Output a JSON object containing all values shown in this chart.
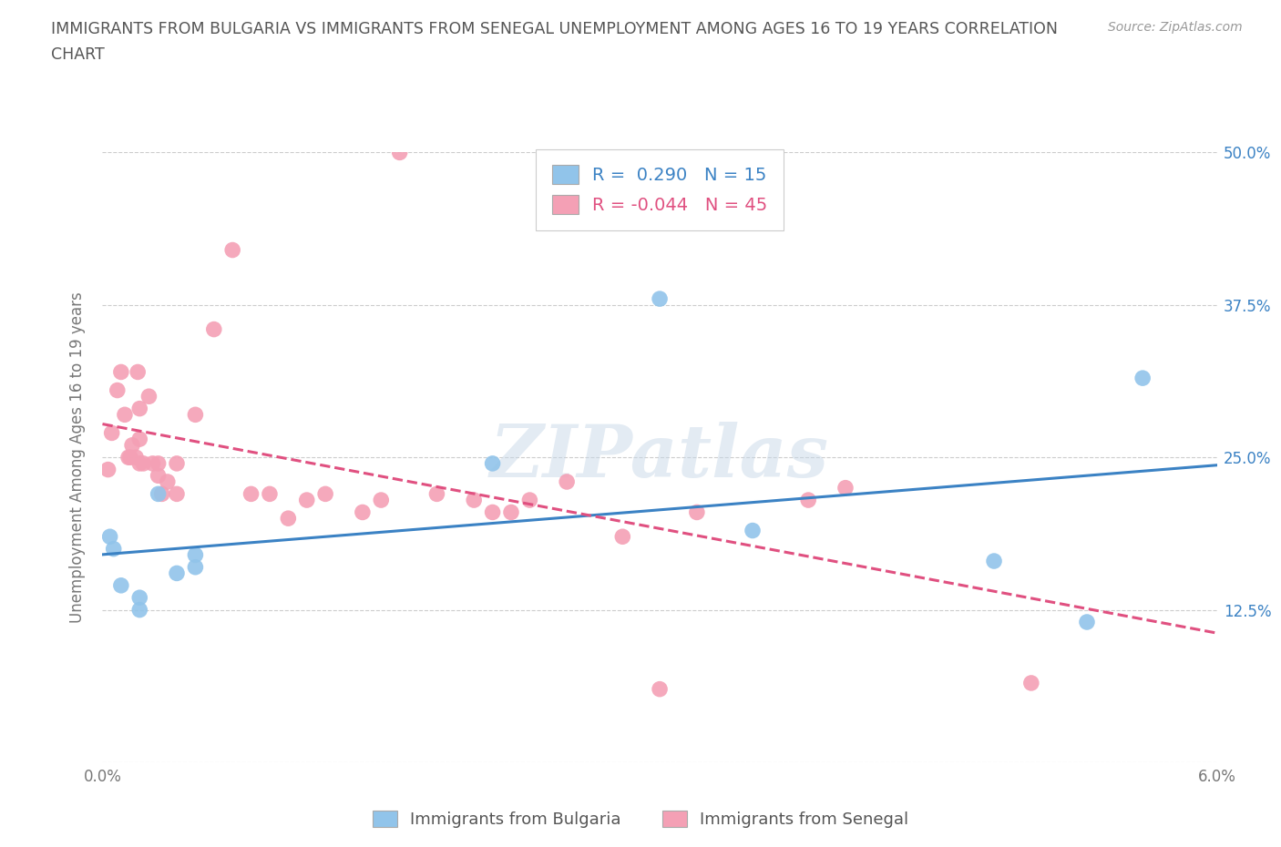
{
  "title_line1": "IMMIGRANTS FROM BULGARIA VS IMMIGRANTS FROM SENEGAL UNEMPLOYMENT AMONG AGES 16 TO 19 YEARS CORRELATION",
  "title_line2": "CHART",
  "source": "Source: ZipAtlas.com",
  "ylabel": "Unemployment Among Ages 16 to 19 years",
  "xlabel_label1": "Immigrants from Bulgaria",
  "xlabel_label2": "Immigrants from Senegal",
  "xlim": [
    0.0,
    0.06
  ],
  "ylim": [
    0.0,
    0.5
  ],
  "xticks": [
    0.0,
    0.01,
    0.02,
    0.03,
    0.04,
    0.05,
    0.06
  ],
  "yticks": [
    0.0,
    0.125,
    0.25,
    0.375,
    0.5
  ],
  "xticklabels": [
    "0.0%",
    "",
    "",
    "",
    "",
    "",
    "6.0%"
  ],
  "yticklabels_left": [
    "",
    "",
    "",
    "",
    ""
  ],
  "yticklabels_right": [
    "",
    "12.5%",
    "25.0%",
    "37.5%",
    "50.0%"
  ],
  "bulgaria_color": "#91C4EA",
  "senegal_color": "#F4A0B5",
  "bulgaria_line_color": "#3B82C4",
  "senegal_line_color": "#E05080",
  "r_bulgaria": 0.29,
  "n_bulgaria": 15,
  "r_senegal": -0.044,
  "n_senegal": 45,
  "watermark": "ZIPatlas",
  "bulgaria_x": [
    0.0004,
    0.0006,
    0.001,
    0.002,
    0.002,
    0.003,
    0.004,
    0.005,
    0.005,
    0.021,
    0.03,
    0.035,
    0.048,
    0.053,
    0.056
  ],
  "bulgaria_y": [
    0.185,
    0.175,
    0.145,
    0.135,
    0.125,
    0.22,
    0.155,
    0.16,
    0.17,
    0.245,
    0.38,
    0.19,
    0.165,
    0.115,
    0.315
  ],
  "senegal_x": [
    0.0003,
    0.0005,
    0.0008,
    0.001,
    0.0012,
    0.0014,
    0.0015,
    0.0016,
    0.0018,
    0.0019,
    0.002,
    0.002,
    0.002,
    0.0022,
    0.0025,
    0.0027,
    0.003,
    0.003,
    0.0032,
    0.0035,
    0.004,
    0.004,
    0.005,
    0.006,
    0.007,
    0.008,
    0.009,
    0.01,
    0.011,
    0.012,
    0.014,
    0.015,
    0.016,
    0.018,
    0.02,
    0.021,
    0.022,
    0.023,
    0.025,
    0.028,
    0.03,
    0.032,
    0.038,
    0.04,
    0.05
  ],
  "senegal_y": [
    0.24,
    0.27,
    0.305,
    0.32,
    0.285,
    0.25,
    0.25,
    0.26,
    0.25,
    0.32,
    0.245,
    0.265,
    0.29,
    0.245,
    0.3,
    0.245,
    0.235,
    0.245,
    0.22,
    0.23,
    0.245,
    0.22,
    0.285,
    0.355,
    0.42,
    0.22,
    0.22,
    0.2,
    0.215,
    0.22,
    0.205,
    0.215,
    0.5,
    0.22,
    0.215,
    0.205,
    0.205,
    0.215,
    0.23,
    0.185,
    0.06,
    0.205,
    0.215,
    0.225,
    0.065
  ]
}
